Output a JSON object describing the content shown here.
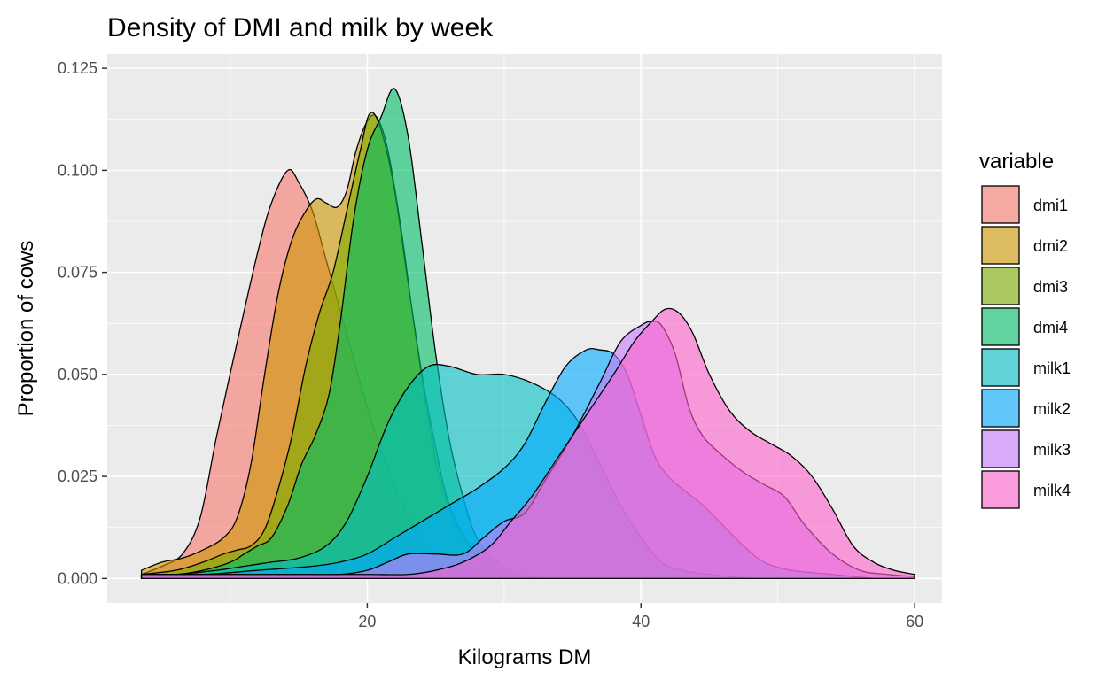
{
  "chart_data": {
    "type": "area",
    "subtype": "density",
    "title": "Density of DMI and milk by week",
    "xlabel": "Kilograms DM",
    "ylabel": "Proportion of cows",
    "xlim": [
      1,
      62
    ],
    "ylim": [
      -0.006,
      0.1285
    ],
    "x_ticks": [
      20,
      40,
      60
    ],
    "x_tick_labels": [
      "20",
      "40",
      "60"
    ],
    "y_ticks": [
      0,
      0.025,
      0.05,
      0.075,
      0.1,
      0.125
    ],
    "y_tick_labels": [
      "0.000",
      "0.025",
      "0.050",
      "0.075",
      "0.100",
      "0.125"
    ],
    "grid": true,
    "legend": {
      "title": "variable",
      "placement": "right"
    },
    "series": [
      {
        "name": "dmi1",
        "color": "#F8766D",
        "points": [
          [
            3.5,
            0.001
          ],
          [
            5,
            0.003
          ],
          [
            6.5,
            0.006
          ],
          [
            7.8,
            0.015
          ],
          [
            9,
            0.035
          ],
          [
            10.5,
            0.058
          ],
          [
            12,
            0.08
          ],
          [
            13,
            0.092
          ],
          [
            14.2,
            0.1
          ],
          [
            15,
            0.097
          ],
          [
            16,
            0.09
          ],
          [
            17,
            0.078
          ],
          [
            18.5,
            0.06
          ],
          [
            20,
            0.042
          ],
          [
            21.5,
            0.027
          ],
          [
            23,
            0.015
          ],
          [
            24.5,
            0.007
          ],
          [
            26,
            0.003
          ],
          [
            28,
            0.001
          ],
          [
            30,
            0
          ]
        ]
      },
      {
        "name": "dmi2",
        "color": "#CD9600",
        "points": [
          [
            3.5,
            0.002
          ],
          [
            5,
            0.004
          ],
          [
            6.5,
            0.005
          ],
          [
            8,
            0.007
          ],
          [
            9.5,
            0.01
          ],
          [
            10.5,
            0.015
          ],
          [
            11.5,
            0.028
          ],
          [
            12.5,
            0.05
          ],
          [
            13.5,
            0.07
          ],
          [
            14.5,
            0.083
          ],
          [
            15.5,
            0.09
          ],
          [
            16.3,
            0.093
          ],
          [
            17,
            0.092
          ],
          [
            17.8,
            0.091
          ],
          [
            18.5,
            0.095
          ],
          [
            19.2,
            0.105
          ],
          [
            20,
            0.112
          ],
          [
            20.7,
            0.113
          ],
          [
            21.5,
            0.105
          ],
          [
            22.5,
            0.085
          ],
          [
            23.5,
            0.06
          ],
          [
            24.5,
            0.038
          ],
          [
            25.5,
            0.022
          ],
          [
            27,
            0.01
          ],
          [
            29,
            0.003
          ],
          [
            31,
            0.001
          ],
          [
            33,
            0
          ]
        ]
      },
      {
        "name": "dmi3",
        "color": "#7CAE00",
        "points": [
          [
            3.5,
            0.001
          ],
          [
            6,
            0.002
          ],
          [
            8,
            0.004
          ],
          [
            9.5,
            0.006
          ],
          [
            10.5,
            0.007
          ],
          [
            11.5,
            0.008
          ],
          [
            12.5,
            0.012
          ],
          [
            13.5,
            0.022
          ],
          [
            14.5,
            0.035
          ],
          [
            15.5,
            0.052
          ],
          [
            16.5,
            0.065
          ],
          [
            17.5,
            0.075
          ],
          [
            18.5,
            0.09
          ],
          [
            19.5,
            0.105
          ],
          [
            20.2,
            0.114
          ],
          [
            21,
            0.11
          ],
          [
            22,
            0.095
          ],
          [
            23,
            0.072
          ],
          [
            24,
            0.05
          ],
          [
            25,
            0.032
          ],
          [
            26,
            0.018
          ],
          [
            27.5,
            0.008
          ],
          [
            29,
            0.003
          ],
          [
            31,
            0.001
          ],
          [
            33,
            0
          ]
        ]
      },
      {
        "name": "dmi4",
        "color": "#00BE67",
        "points": [
          [
            3.5,
            0.001
          ],
          [
            6,
            0.001
          ],
          [
            8,
            0.002
          ],
          [
            10,
            0.004
          ],
          [
            11,
            0.006
          ],
          [
            12,
            0.008
          ],
          [
            13,
            0.01
          ],
          [
            14.2,
            0.018
          ],
          [
            15.2,
            0.028
          ],
          [
            16.2,
            0.035
          ],
          [
            17.2,
            0.045
          ],
          [
            18,
            0.062
          ],
          [
            19,
            0.088
          ],
          [
            20,
            0.105
          ],
          [
            21,
            0.113
          ],
          [
            22,
            0.12
          ],
          [
            23,
            0.108
          ],
          [
            24,
            0.082
          ],
          [
            25,
            0.055
          ],
          [
            26,
            0.034
          ],
          [
            27,
            0.02
          ],
          [
            28,
            0.01
          ],
          [
            29.5,
            0.004
          ],
          [
            31,
            0.001
          ],
          [
            33,
            0
          ]
        ]
      },
      {
        "name": "milk1",
        "color": "#00BFC4",
        "points": [
          [
            3.5,
            0.001
          ],
          [
            6,
            0.001
          ],
          [
            9,
            0.002
          ],
          [
            11,
            0.003
          ],
          [
            13,
            0.004
          ],
          [
            15,
            0.005
          ],
          [
            17,
            0.008
          ],
          [
            18.5,
            0.014
          ],
          [
            20,
            0.025
          ],
          [
            21.5,
            0.038
          ],
          [
            23,
            0.047
          ],
          [
            24.5,
            0.052
          ],
          [
            26,
            0.052
          ],
          [
            28,
            0.05
          ],
          [
            30,
            0.05
          ],
          [
            32,
            0.048
          ],
          [
            34,
            0.044
          ],
          [
            35.5,
            0.038
          ],
          [
            37,
            0.028
          ],
          [
            38.5,
            0.018
          ],
          [
            40,
            0.01
          ],
          [
            41.5,
            0.004
          ],
          [
            43,
            0.002
          ],
          [
            45,
            0.001
          ],
          [
            48,
            0
          ]
        ]
      },
      {
        "name": "milk2",
        "color": "#00A9FF",
        "points": [
          [
            3.5,
            0.001
          ],
          [
            8,
            0.001
          ],
          [
            12,
            0.002
          ],
          [
            16,
            0.003
          ],
          [
            18,
            0.004
          ],
          [
            20,
            0.006
          ],
          [
            22,
            0.01
          ],
          [
            24,
            0.014
          ],
          [
            26,
            0.018
          ],
          [
            28,
            0.022
          ],
          [
            30,
            0.027
          ],
          [
            31.5,
            0.033
          ],
          [
            33,
            0.043
          ],
          [
            34.5,
            0.052
          ],
          [
            36,
            0.056
          ],
          [
            37,
            0.056
          ],
          [
            38,
            0.055
          ],
          [
            39,
            0.05
          ],
          [
            40,
            0.04
          ],
          [
            41,
            0.03
          ],
          [
            42,
            0.025
          ],
          [
            43,
            0.022
          ],
          [
            44.5,
            0.018
          ],
          [
            46,
            0.013
          ],
          [
            47.5,
            0.008
          ],
          [
            49,
            0.004
          ],
          [
            51,
            0.002
          ],
          [
            54,
            0.001
          ],
          [
            57,
            0
          ]
        ]
      },
      {
        "name": "milk3",
        "color": "#C77CFF",
        "points": [
          [
            3.5,
            0.001
          ],
          [
            10,
            0.001
          ],
          [
            15,
            0.001
          ],
          [
            18,
            0.001
          ],
          [
            20,
            0.002
          ],
          [
            21.5,
            0.004
          ],
          [
            23,
            0.006
          ],
          [
            25,
            0.006
          ],
          [
            27,
            0.006
          ],
          [
            28.5,
            0.01
          ],
          [
            30,
            0.014
          ],
          [
            31.5,
            0.016
          ],
          [
            33,
            0.024
          ],
          [
            35,
            0.035
          ],
          [
            37,
            0.048
          ],
          [
            38.5,
            0.058
          ],
          [
            40,
            0.062
          ],
          [
            40.8,
            0.063
          ],
          [
            41.5,
            0.062
          ],
          [
            42.5,
            0.055
          ],
          [
            43.5,
            0.042
          ],
          [
            44.5,
            0.035
          ],
          [
            46,
            0.03
          ],
          [
            47.5,
            0.026
          ],
          [
            49,
            0.023
          ],
          [
            50.5,
            0.02
          ],
          [
            52,
            0.013
          ],
          [
            54,
            0.006
          ],
          [
            56,
            0.002
          ],
          [
            58,
            0.001
          ],
          [
            60,
            0.0005
          ]
        ]
      },
      {
        "name": "milk4",
        "color": "#FF61CC",
        "points": [
          [
            3.5,
            0.001
          ],
          [
            10,
            0.001
          ],
          [
            16,
            0.001
          ],
          [
            20,
            0.001
          ],
          [
            23,
            0.001
          ],
          [
            25,
            0.002
          ],
          [
            27,
            0.004
          ],
          [
            29,
            0.008
          ],
          [
            30.5,
            0.014
          ],
          [
            32,
            0.02
          ],
          [
            34,
            0.03
          ],
          [
            36,
            0.04
          ],
          [
            38,
            0.05
          ],
          [
            39.5,
            0.058
          ],
          [
            40.8,
            0.063
          ],
          [
            41.8,
            0.066
          ],
          [
            42.8,
            0.065
          ],
          [
            43.8,
            0.06
          ],
          [
            45,
            0.05
          ],
          [
            46.5,
            0.041
          ],
          [
            48,
            0.036
          ],
          [
            49.5,
            0.033
          ],
          [
            51,
            0.03
          ],
          [
            52.5,
            0.025
          ],
          [
            54,
            0.017
          ],
          [
            55.5,
            0.008
          ],
          [
            57,
            0.004
          ],
          [
            58.5,
            0.002
          ],
          [
            60,
            0.001
          ]
        ]
      }
    ]
  }
}
